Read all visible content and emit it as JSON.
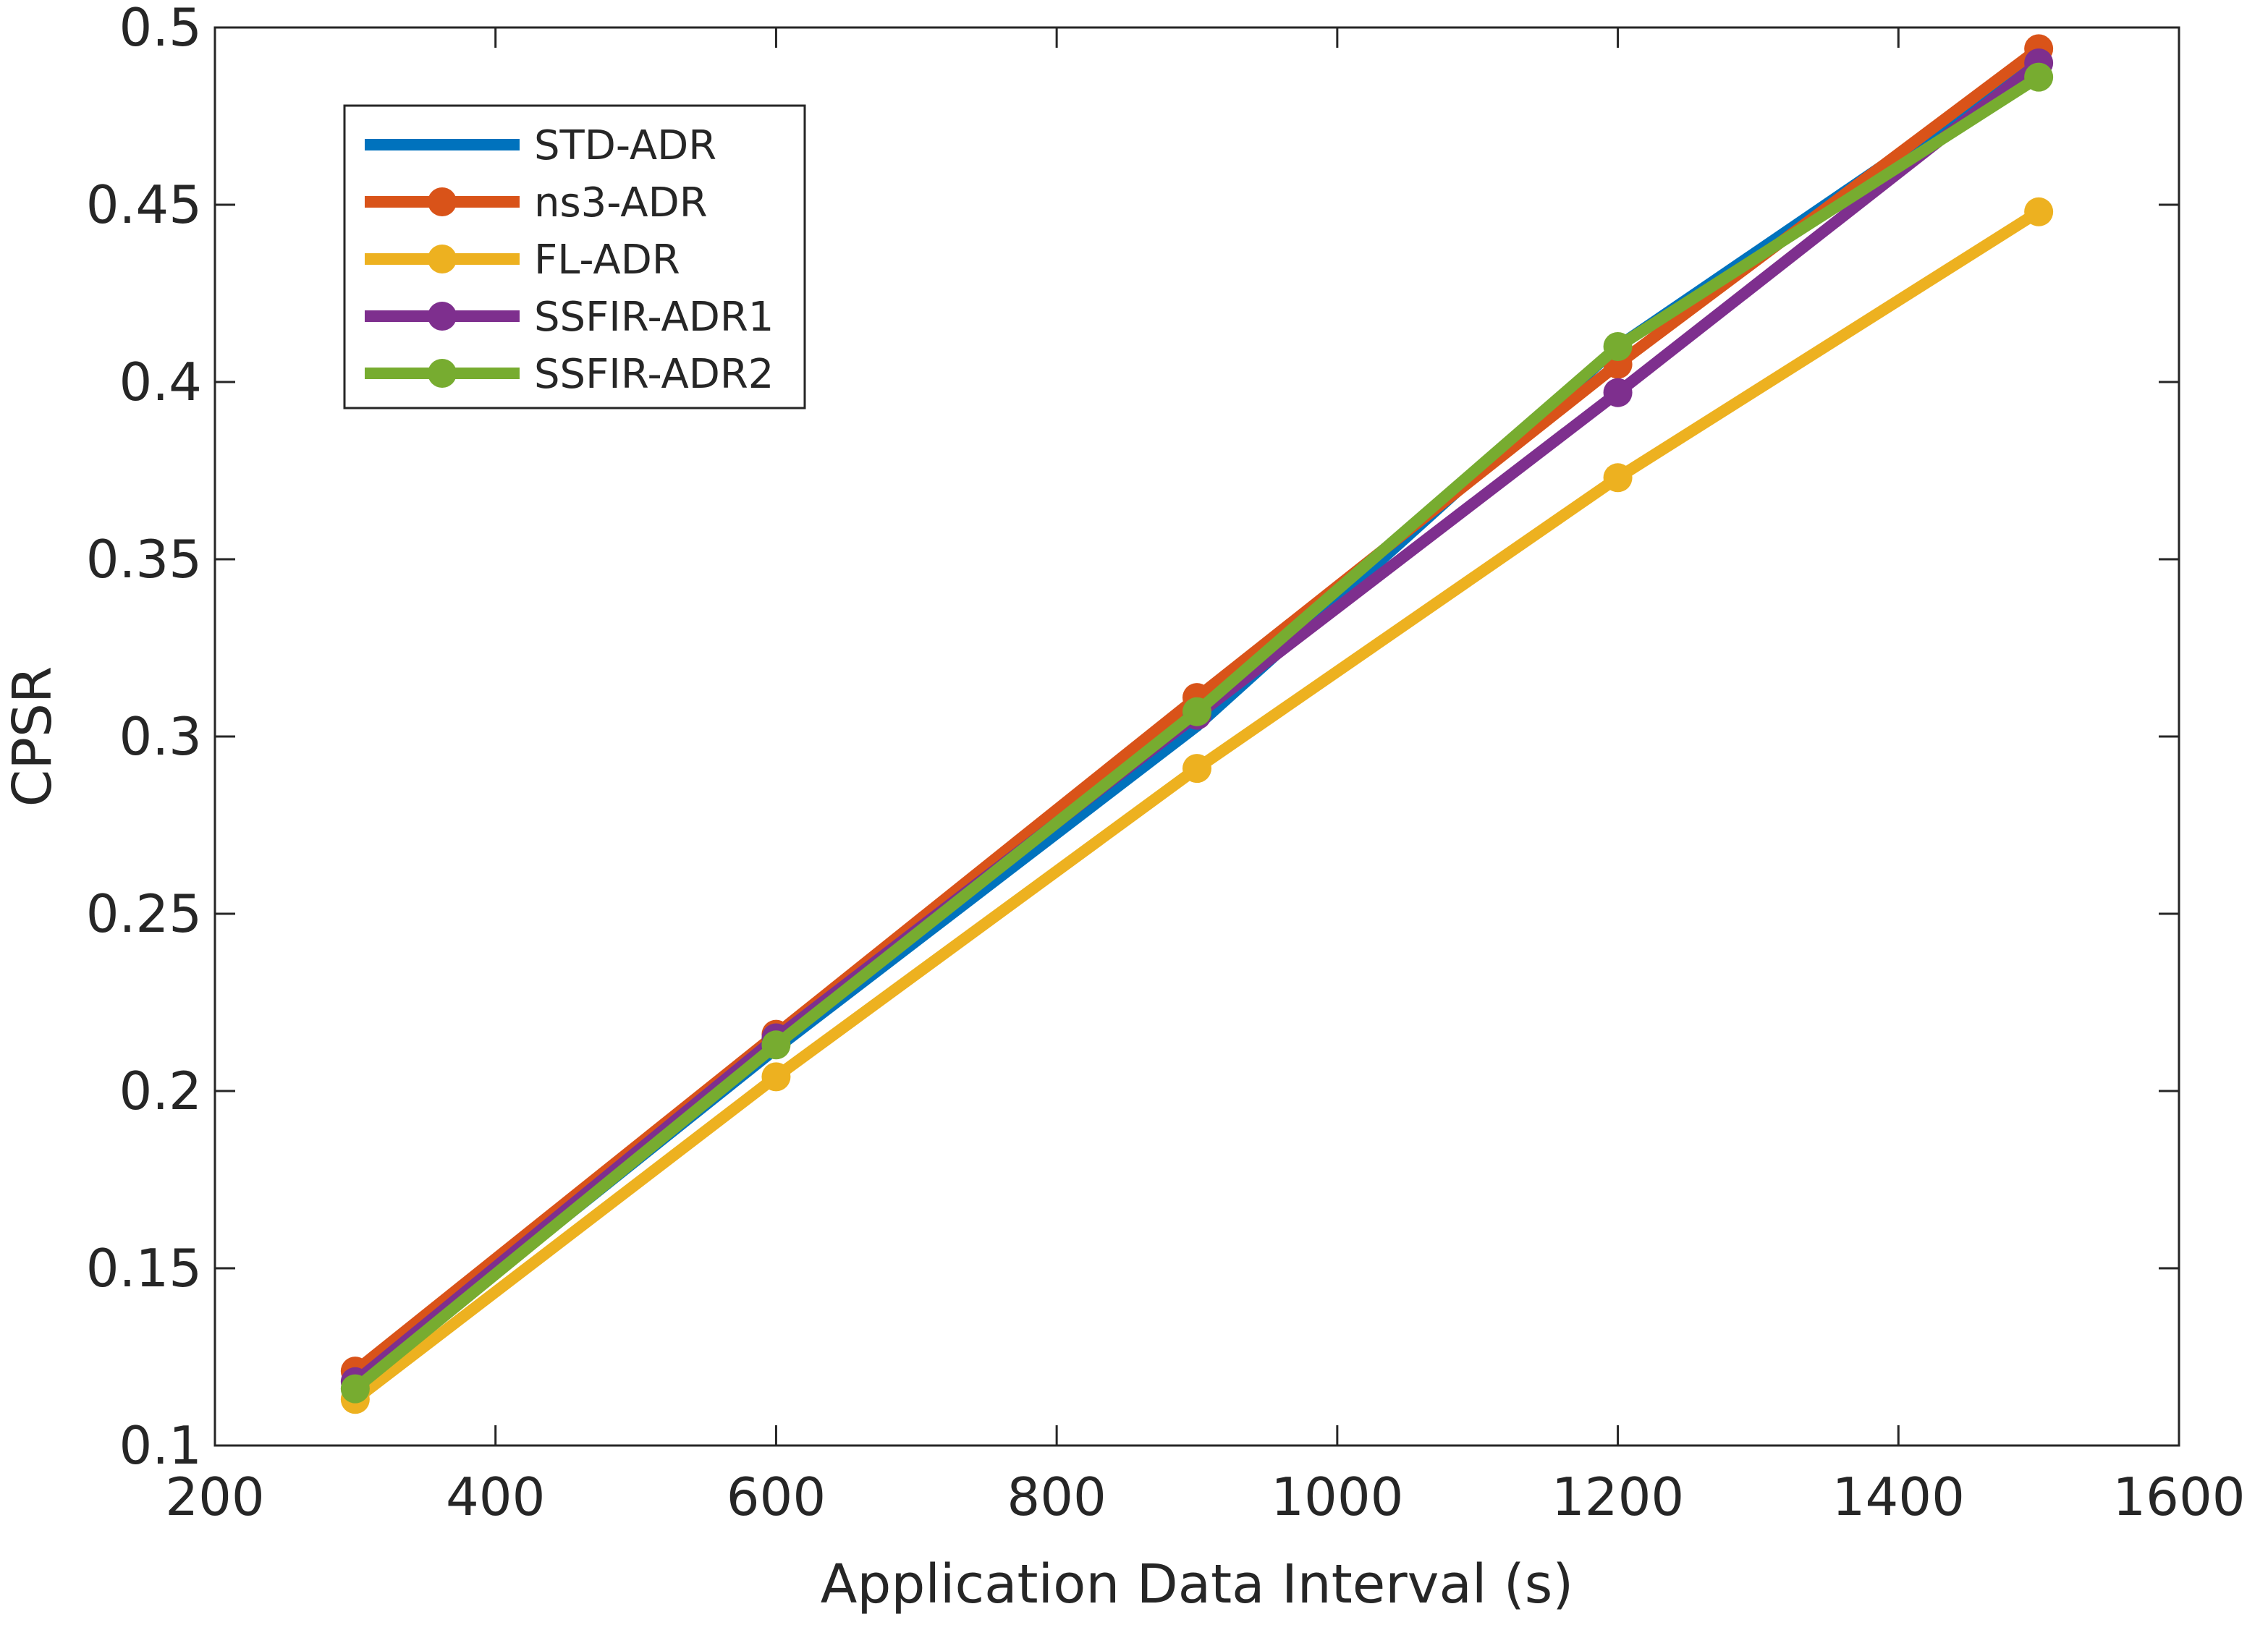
{
  "chart_data": {
    "type": "line",
    "title": "",
    "xlabel": "Application Data Interval (s)",
    "ylabel": "CPSR",
    "xlim": [
      200,
      1600
    ],
    "ylim": [
      0.1,
      0.5
    ],
    "xticks": [
      200,
      400,
      600,
      800,
      1000,
      1200,
      1400,
      1600
    ],
    "yticks": [
      0.1,
      0.15,
      0.2,
      0.25,
      0.3,
      0.35,
      0.4,
      0.45,
      0.5
    ],
    "xtick_labels": [
      "200",
      "400",
      "600",
      "800",
      "1000",
      "1200",
      "1400",
      "1600"
    ],
    "ytick_labels": [
      "0.1",
      "0.15",
      "0.2",
      "0.25",
      "0.3",
      "0.35",
      "0.4",
      "0.45",
      "0.5"
    ],
    "grid": false,
    "legend_position": "top-left",
    "x": [
      300,
      600,
      900,
      1200,
      1500
    ],
    "series": [
      {
        "name": "STD-ADR",
        "color": "#0072BD",
        "markers": false,
        "values": [
          0.117,
          0.212,
          0.303,
          0.41,
          0.491
        ]
      },
      {
        "name": "ns3-ADR",
        "color": "#D95319",
        "markers": true,
        "values": [
          0.121,
          0.216,
          0.311,
          0.405,
          0.494
        ]
      },
      {
        "name": "FL-ADR",
        "color": "#EDB120",
        "markers": true,
        "values": [
          0.113,
          0.204,
          0.291,
          0.373,
          0.448
        ]
      },
      {
        "name": "SSFIR-ADR1",
        "color": "#7E2F8E",
        "markers": true,
        "values": [
          0.118,
          0.215,
          0.306,
          0.397,
          0.49
        ]
      },
      {
        "name": "SSFIR-ADR2",
        "color": "#77AC30",
        "markers": true,
        "values": [
          0.116,
          0.213,
          0.307,
          0.41,
          0.486
        ]
      }
    ]
  }
}
